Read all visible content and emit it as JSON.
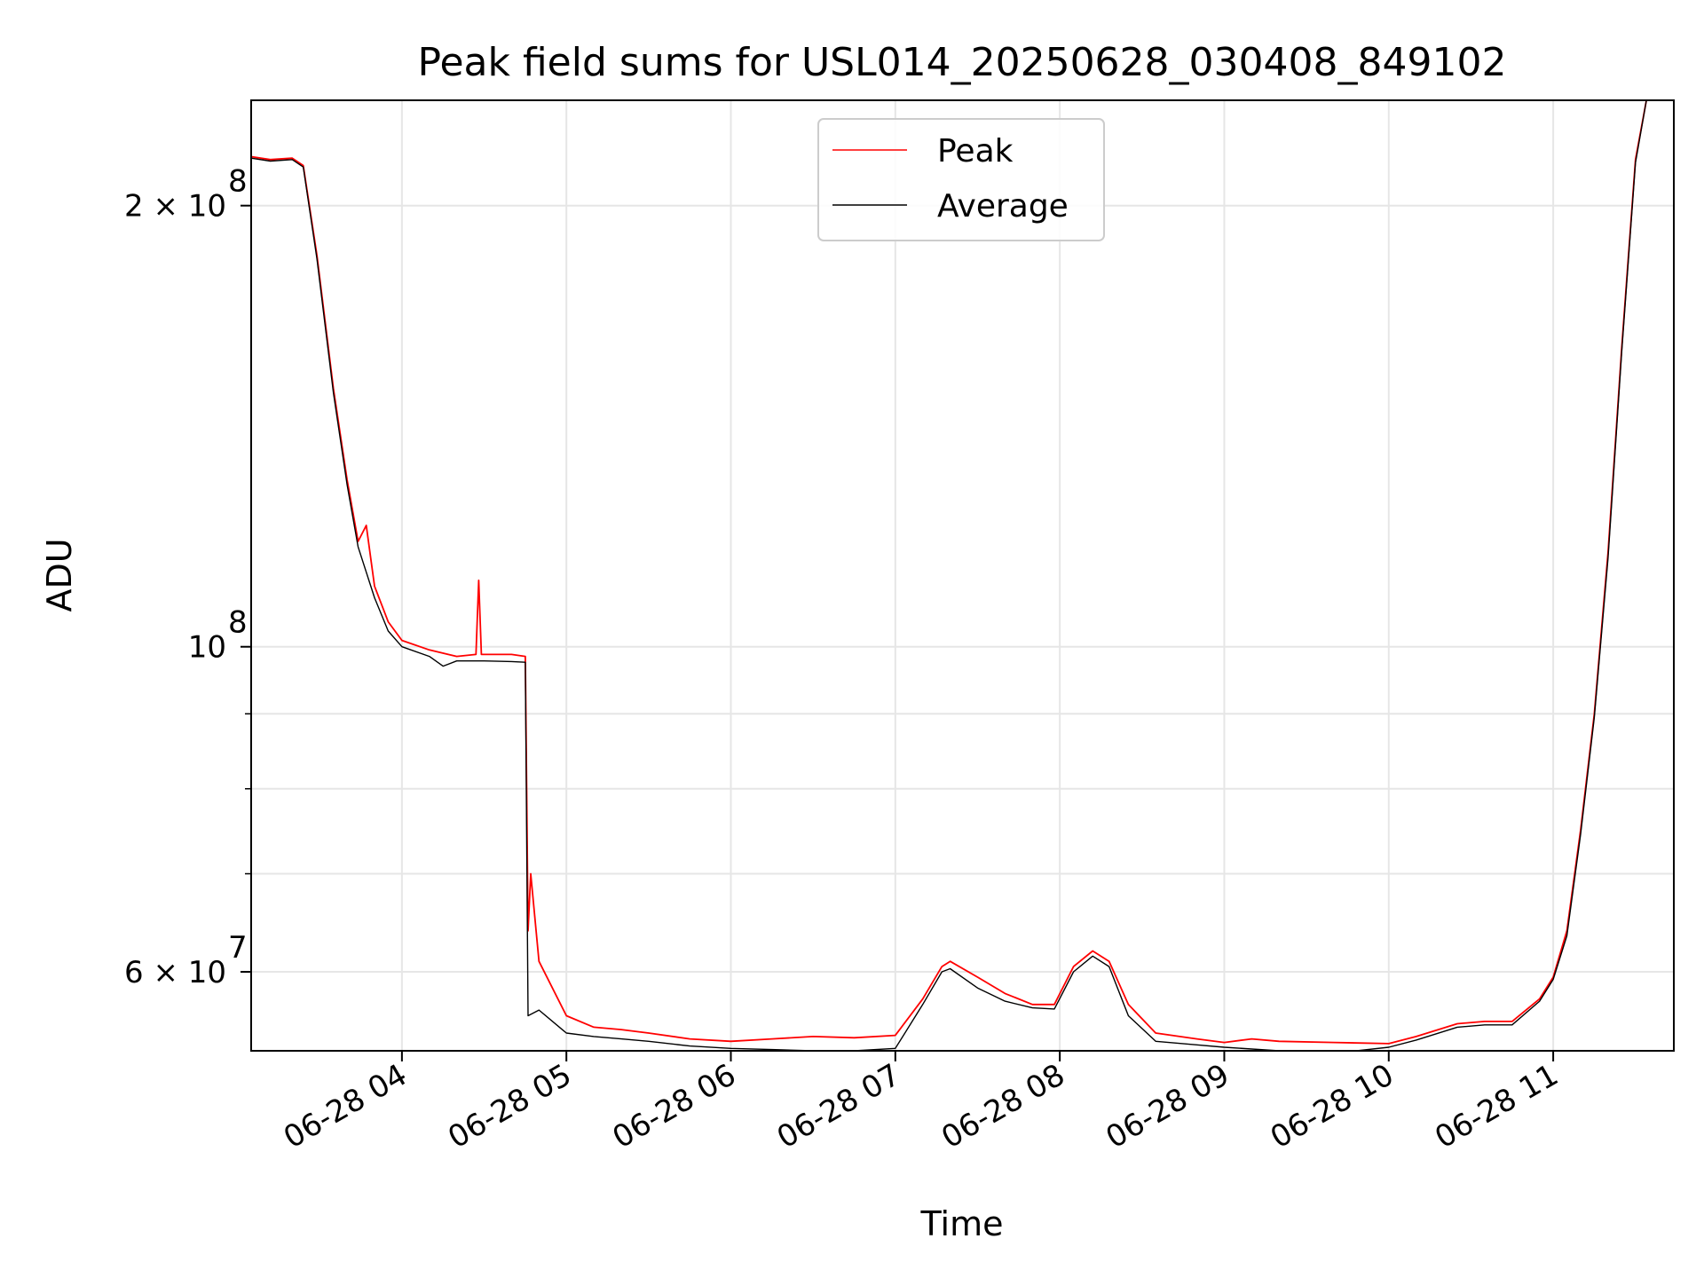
{
  "chart_data": {
    "type": "line",
    "title": "Peak field sums for USL014_20250628_030408_849102",
    "xlabel": "Time",
    "ylabel": "ADU",
    "y_scale": "log",
    "grid": true,
    "legend_position": "top-center",
    "x_range": [
      "06-28 03:05",
      "06-28 11:44"
    ],
    "ylim": [
      53000000,
      236000000
    ],
    "x_ticks": [
      "06-28 04",
      "06-28 05",
      "06-28 06",
      "06-28 07",
      "06-28 08",
      "06-28 09",
      "06-28 10",
      "06-28 11"
    ],
    "y_tick_labels": [
      {
        "label": "2 × 10",
        "exponent": "8",
        "value": 200000000
      },
      {
        "label": "10",
        "exponent": "8",
        "value": 100000000
      },
      {
        "label": "6 × 10",
        "exponent": "7",
        "value": 60000000
      }
    ],
    "y_minor_ticks": [
      70000000,
      80000000,
      90000000
    ],
    "series": [
      {
        "name": "Peak",
        "color": "#ff0000",
        "points": [
          [
            "06-28 03:05",
            216000000
          ],
          [
            "06-28 03:12",
            215000000
          ],
          [
            "06-28 03:20",
            215500000
          ],
          [
            "06-28 03:24",
            213000000
          ],
          [
            "06-28 03:29",
            185000000
          ],
          [
            "06-28 03:35",
            150000000
          ],
          [
            "06-28 03:40",
            130000000
          ],
          [
            "06-28 03:44",
            118000000
          ],
          [
            "06-28 03:47",
            121000000
          ],
          [
            "06-28 03:50",
            110000000
          ],
          [
            "06-28 03:55",
            104000000
          ],
          [
            "06-28 04:00",
            101000000
          ],
          [
            "06-28 04:10",
            99500000
          ],
          [
            "06-28 04:20",
            98500000
          ],
          [
            "06-28 04:27",
            98800000
          ],
          [
            "06-28 04:28",
            111000000
          ],
          [
            "06-28 04:29",
            98800000
          ],
          [
            "06-28 04:40",
            98800000
          ],
          [
            "06-28 04:45",
            98500000
          ],
          [
            "06-28 04:46",
            64000000
          ],
          [
            "06-28 04:47",
            70000000
          ],
          [
            "06-28 04:50",
            61000000
          ],
          [
            "06-28 05:00",
            56000000
          ],
          [
            "06-28 05:10",
            55000000
          ],
          [
            "06-28 05:20",
            54800000
          ],
          [
            "06-28 05:30",
            54500000
          ],
          [
            "06-28 05:45",
            54000000
          ],
          [
            "06-28 06:00",
            53800000
          ],
          [
            "06-28 06:15",
            54000000
          ],
          [
            "06-28 06:30",
            54200000
          ],
          [
            "06-28 06:45",
            54100000
          ],
          [
            "06-28 07:00",
            54300000
          ],
          [
            "06-28 07:10",
            57500000
          ],
          [
            "06-28 07:17",
            60500000
          ],
          [
            "06-28 07:20",
            61000000
          ],
          [
            "06-28 07:30",
            59500000
          ],
          [
            "06-28 07:40",
            58000000
          ],
          [
            "06-28 07:50",
            57000000
          ],
          [
            "06-28 07:58",
            57000000
          ],
          [
            "06-28 08:05",
            60500000
          ],
          [
            "06-28 08:12",
            62000000
          ],
          [
            "06-28 08:18",
            61000000
          ],
          [
            "06-28 08:25",
            57000000
          ],
          [
            "06-28 08:35",
            54500000
          ],
          [
            "06-28 08:50",
            54000000
          ],
          [
            "06-28 09:00",
            53700000
          ],
          [
            "06-28 09:10",
            54000000
          ],
          [
            "06-28 09:20",
            53800000
          ],
          [
            "06-28 09:40",
            53700000
          ],
          [
            "06-28 10:00",
            53600000
          ],
          [
            "06-28 10:10",
            54200000
          ],
          [
            "06-28 10:25",
            55300000
          ],
          [
            "06-28 10:35",
            55500000
          ],
          [
            "06-28 10:45",
            55500000
          ],
          [
            "06-28 10:55",
            57500000
          ],
          [
            "06-28 11:00",
            59500000
          ],
          [
            "06-28 11:05",
            64000000
          ],
          [
            "06-28 11:10",
            75000000
          ],
          [
            "06-28 11:15",
            90000000
          ],
          [
            "06-28 11:20",
            116000000
          ],
          [
            "06-28 11:25",
            160000000
          ],
          [
            "06-28 11:30",
            215000000
          ],
          [
            "06-28 11:34",
            236000000
          ],
          [
            "06-28 11:44",
            236000000
          ]
        ]
      },
      {
        "name": "Average",
        "color": "#000000",
        "points": [
          [
            "06-28 03:05",
            215500000
          ],
          [
            "06-28 03:12",
            214500000
          ],
          [
            "06-28 03:20",
            215000000
          ],
          [
            "06-28 03:24",
            212500000
          ],
          [
            "06-28 03:29",
            184000000
          ],
          [
            "06-28 03:35",
            149000000
          ],
          [
            "06-28 03:40",
            129000000
          ],
          [
            "06-28 03:44",
            117000000
          ],
          [
            "06-28 03:50",
            108000000
          ],
          [
            "06-28 03:55",
            102500000
          ],
          [
            "06-28 04:00",
            100000000
          ],
          [
            "06-28 04:10",
            98500000
          ],
          [
            "06-28 04:15",
            97000000
          ],
          [
            "06-28 04:20",
            97800000
          ],
          [
            "06-28 04:30",
            97800000
          ],
          [
            "06-28 04:40",
            97700000
          ],
          [
            "06-28 04:45",
            97600000
          ],
          [
            "06-28 04:46",
            56000000
          ],
          [
            "06-28 04:50",
            56500000
          ],
          [
            "06-28 05:00",
            54500000
          ],
          [
            "06-28 05:10",
            54200000
          ],
          [
            "06-28 05:20",
            54000000
          ],
          [
            "06-28 05:30",
            53800000
          ],
          [
            "06-28 05:45",
            53400000
          ],
          [
            "06-28 06:00",
            53200000
          ],
          [
            "06-28 06:15",
            53100000
          ],
          [
            "06-28 06:30",
            53000000
          ],
          [
            "06-28 06:45",
            53000000
          ],
          [
            "06-28 07:00",
            53200000
          ],
          [
            "06-28 07:10",
            57000000
          ],
          [
            "06-28 07:17",
            60000000
          ],
          [
            "06-28 07:20",
            60300000
          ],
          [
            "06-28 07:30",
            58500000
          ],
          [
            "06-28 07:40",
            57300000
          ],
          [
            "06-28 07:50",
            56700000
          ],
          [
            "06-28 07:58",
            56600000
          ],
          [
            "06-28 08:05",
            60000000
          ],
          [
            "06-28 08:12",
            61500000
          ],
          [
            "06-28 08:18",
            60500000
          ],
          [
            "06-28 08:25",
            56000000
          ],
          [
            "06-28 08:35",
            53800000
          ],
          [
            "06-28 08:50",
            53500000
          ],
          [
            "06-28 09:00",
            53300000
          ],
          [
            "06-28 09:20",
            53000000
          ],
          [
            "06-28 09:40",
            52800000
          ],
          [
            "06-28 10:00",
            53300000
          ],
          [
            "06-28 10:10",
            53900000
          ],
          [
            "06-28 10:25",
            55000000
          ],
          [
            "06-28 10:35",
            55200000
          ],
          [
            "06-28 10:45",
            55200000
          ],
          [
            "06-28 10:55",
            57300000
          ],
          [
            "06-28 11:00",
            59300000
          ],
          [
            "06-28 11:05",
            63500000
          ],
          [
            "06-28 11:10",
            74500000
          ],
          [
            "06-28 11:15",
            89500000
          ],
          [
            "06-28 11:20",
            115000000
          ],
          [
            "06-28 11:25",
            159000000
          ],
          [
            "06-28 11:30",
            214000000
          ],
          [
            "06-28 11:34",
            236000000
          ],
          [
            "06-28 11:44",
            236000000
          ]
        ]
      }
    ]
  }
}
